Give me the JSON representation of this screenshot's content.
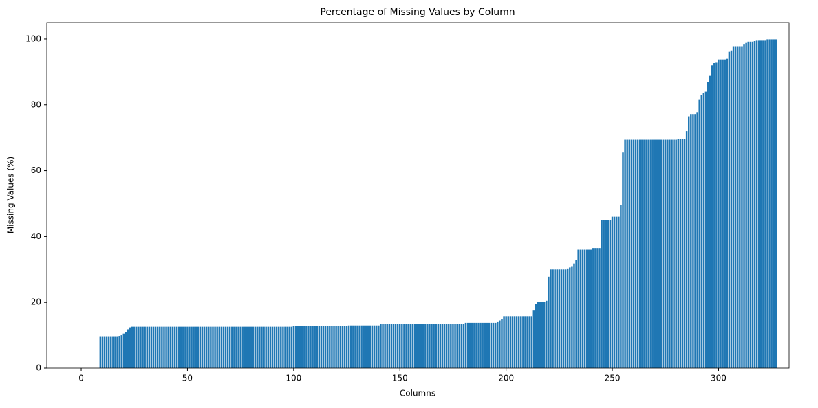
{
  "chart_data": {
    "type": "bar",
    "title": "Percentage of Missing Values by Column",
    "xlabel": "Columns",
    "ylabel": "Missing Values (%)",
    "color": "#1f77b4",
    "xlim": [
      -16.2,
      333.2
    ],
    "xticks": [
      0,
      50,
      100,
      150,
      200,
      250,
      300
    ],
    "ylim": [
      0,
      105
    ],
    "yticks": [
      0,
      20,
      40,
      60,
      80,
      100
    ],
    "grid": false,
    "x": [
      0,
      1,
      2,
      3,
      4,
      5,
      6,
      7,
      8,
      9,
      10,
      11,
      12,
      13,
      14,
      15,
      16,
      17,
      18,
      19,
      20,
      21,
      22,
      23,
      24,
      25,
      26,
      27,
      28,
      29,
      30,
      31,
      32,
      33,
      34,
      35,
      36,
      37,
      38,
      39,
      40,
      41,
      42,
      43,
      44,
      45,
      46,
      47,
      48,
      49,
      50,
      51,
      52,
      53,
      54,
      55,
      56,
      57,
      58,
      59,
      60,
      61,
      62,
      63,
      64,
      65,
      66,
      67,
      68,
      69,
      70,
      71,
      72,
      73,
      74,
      75,
      76,
      77,
      78,
      79,
      80,
      81,
      82,
      83,
      84,
      85,
      86,
      87,
      88,
      89,
      90,
      91,
      92,
      93,
      94,
      95,
      96,
      97,
      98,
      99,
      100,
      101,
      102,
      103,
      104,
      105,
      106,
      107,
      108,
      109,
      110,
      111,
      112,
      113,
      114,
      115,
      116,
      117,
      118,
      119,
      120,
      121,
      122,
      123,
      124,
      125,
      126,
      127,
      128,
      129,
      130,
      131,
      132,
      133,
      134,
      135,
      136,
      137,
      138,
      139,
      140,
      141,
      142,
      143,
      144,
      145,
      146,
      147,
      148,
      149,
      150,
      151,
      152,
      153,
      154,
      155,
      156,
      157,
      158,
      159,
      160,
      161,
      162,
      163,
      164,
      165,
      166,
      167,
      168,
      169,
      170,
      171,
      172,
      173,
      174,
      175,
      176,
      177,
      178,
      179,
      180,
      181,
      182,
      183,
      184,
      185,
      186,
      187,
      188,
      189,
      190,
      191,
      192,
      193,
      194,
      195,
      196,
      197,
      198,
      199,
      200,
      201,
      202,
      203,
      204,
      205,
      206,
      207,
      208,
      209,
      210,
      211,
      212,
      213,
      214,
      215,
      216,
      217,
      218,
      219,
      220,
      221,
      222,
      223,
      224,
      225,
      226,
      227,
      228,
      229,
      230,
      231,
      232,
      233,
      234,
      235,
      236,
      237,
      238,
      239,
      240,
      241,
      242,
      243,
      244,
      245,
      246,
      247,
      248,
      249,
      250,
      251,
      252,
      253,
      254,
      255,
      256,
      257,
      258,
      259,
      260,
      261,
      262,
      263,
      264,
      265,
      266,
      267,
      268,
      269,
      270,
      271,
      272,
      273,
      274,
      275,
      276,
      277,
      278,
      279,
      280,
      281,
      282,
      283,
      284,
      285,
      286,
      287,
      288,
      289,
      290,
      291,
      292,
      293,
      294,
      295,
      296,
      297,
      298,
      299,
      300,
      301,
      302,
      303,
      304,
      305,
      306,
      307,
      308,
      309,
      310,
      311,
      312,
      313,
      314,
      315,
      316,
      317,
      318,
      319,
      320,
      321,
      322,
      323,
      324,
      325,
      326,
      327
    ],
    "values": [
      0,
      0,
      0,
      0,
      0,
      0,
      0,
      0,
      0,
      9.7,
      9.7,
      9.7,
      9.7,
      9.7,
      9.7,
      9.7,
      9.7,
      9.7,
      9.8,
      10.0,
      10.5,
      11.0,
      11.8,
      12.4,
      12.6,
      12.6,
      12.6,
      12.6,
      12.6,
      12.6,
      12.6,
      12.6,
      12.6,
      12.6,
      12.6,
      12.6,
      12.6,
      12.6,
      12.6,
      12.6,
      12.6,
      12.6,
      12.6,
      12.6,
      12.6,
      12.6,
      12.6,
      12.6,
      12.6,
      12.6,
      12.6,
      12.6,
      12.6,
      12.6,
      12.6,
      12.6,
      12.6,
      12.6,
      12.6,
      12.6,
      12.6,
      12.6,
      12.6,
      12.6,
      12.6,
      12.6,
      12.6,
      12.6,
      12.6,
      12.6,
      12.6,
      12.6,
      12.6,
      12.6,
      12.6,
      12.6,
      12.6,
      12.6,
      12.6,
      12.6,
      12.6,
      12.6,
      12.6,
      12.6,
      12.6,
      12.6,
      12.6,
      12.6,
      12.6,
      12.6,
      12.6,
      12.6,
      12.6,
      12.6,
      12.6,
      12.6,
      12.6,
      12.6,
      12.6,
      12.6,
      12.8,
      12.8,
      12.8,
      12.8,
      12.8,
      12.8,
      12.8,
      12.8,
      12.8,
      12.8,
      12.8,
      12.8,
      12.8,
      12.8,
      12.8,
      12.8,
      12.8,
      12.8,
      12.8,
      12.8,
      12.8,
      12.8,
      12.8,
      12.8,
      12.8,
      12.8,
      13.0,
      13.0,
      13.0,
      13.0,
      13.0,
      13.0,
      13.0,
      13.0,
      13.0,
      13.0,
      13.0,
      13.0,
      13.0,
      13.0,
      13.0,
      13.5,
      13.5,
      13.5,
      13.5,
      13.5,
      13.5,
      13.5,
      13.5,
      13.5,
      13.5,
      13.5,
      13.5,
      13.5,
      13.5,
      13.5,
      13.5,
      13.5,
      13.5,
      13.5,
      13.5,
      13.5,
      13.5,
      13.5,
      13.5,
      13.5,
      13.5,
      13.5,
      13.5,
      13.5,
      13.5,
      13.5,
      13.5,
      13.5,
      13.5,
      13.5,
      13.5,
      13.5,
      13.5,
      13.5,
      13.5,
      13.8,
      13.8,
      13.8,
      13.8,
      13.8,
      13.8,
      13.8,
      13.8,
      13.8,
      13.8,
      13.8,
      13.8,
      13.8,
      13.8,
      13.8,
      14.0,
      14.5,
      15.0,
      15.8,
      15.8,
      15.8,
      15.8,
      15.8,
      15.8,
      15.8,
      15.8,
      15.8,
      15.8,
      15.8,
      15.8,
      15.8,
      15.8,
      17.5,
      19.5,
      20.2,
      20.2,
      20.2,
      20.2,
      20.5,
      27.8,
      30.0,
      30.0,
      30.0,
      30.0,
      30.0,
      30.0,
      30.0,
      30.0,
      30.3,
      30.6,
      31.0,
      31.8,
      32.8,
      36.0,
      36.0,
      36.0,
      36.0,
      36.0,
      36.0,
      36.0,
      36.5,
      36.5,
      36.5,
      36.5,
      45.0,
      45.0,
      45.0,
      45.0,
      45.0,
      46.0,
      46.0,
      46.0,
      46.0,
      49.5,
      65.5,
      69.4,
      69.4,
      69.4,
      69.4,
      69.4,
      69.4,
      69.4,
      69.4,
      69.4,
      69.4,
      69.4,
      69.4,
      69.4,
      69.4,
      69.4,
      69.4,
      69.4,
      69.4,
      69.4,
      69.4,
      69.4,
      69.4,
      69.4,
      69.4,
      69.4,
      69.6,
      69.6,
      69.6,
      69.6,
      72.0,
      76.5,
      77.2,
      77.2,
      77.2,
      77.8,
      81.7,
      83.0,
      83.5,
      84.0,
      87.0,
      89.0,
      92.0,
      92.7,
      93.0,
      93.8,
      93.8,
      93.8,
      93.8,
      94.0,
      96.3,
      96.5,
      97.8,
      97.8,
      97.8,
      97.8,
      97.8,
      98.5,
      99.0,
      99.2,
      99.2,
      99.2,
      99.5,
      99.7,
      99.7,
      99.7,
      99.7,
      99.7,
      99.9,
      99.9,
      99.9,
      99.9,
      99.9
    ]
  }
}
